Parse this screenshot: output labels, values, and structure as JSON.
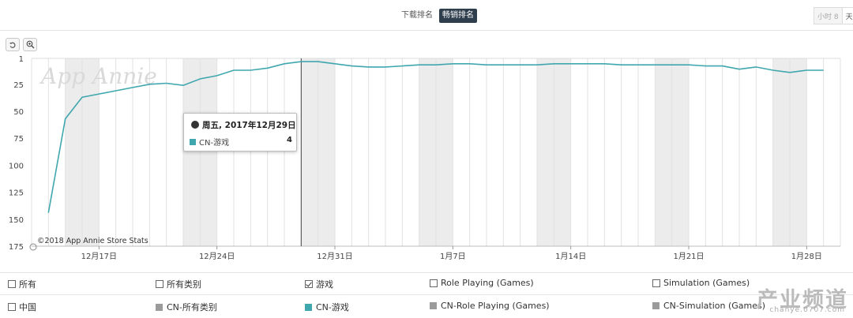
{
  "tabs": {
    "downloads": "下载排名",
    "grossing": "畅销排名"
  },
  "granularity": {
    "option1": "小时",
    "option1_suffix": "8",
    "option2": "天"
  },
  "toolbar": {
    "reset_icon": "undo-icon",
    "zoom_icon": "zoom-in-icon"
  },
  "watermark": "App Annie",
  "copyright": "©2018 App Annie Store Stats",
  "tooltip": {
    "date": "周五, 2017年12月29日",
    "series": "CN-游戏",
    "value": "4"
  },
  "chart_data": {
    "type": "line",
    "y_reversed": true,
    "ylim": [
      1,
      175
    ],
    "y_ticks": [
      "1",
      "25",
      "50",
      "75",
      "100",
      "125",
      "150",
      "175"
    ],
    "x_tick_labels": [
      {
        "date": "2017-12-17",
        "label": "12月17日"
      },
      {
        "date": "2017-12-24",
        "label": "12月24日"
      },
      {
        "date": "2017-12-31",
        "label": "12月31日"
      },
      {
        "date": "2018-01-07",
        "label": "1月7日"
      },
      {
        "date": "2018-01-14",
        "label": "1月14日"
      },
      {
        "date": "2018-01-21",
        "label": "1月21日"
      },
      {
        "date": "2018-01-28",
        "label": "1月28日"
      }
    ],
    "x_start": "2017-12-13",
    "x_end": "2018-01-30",
    "weekend_shading": [
      [
        "2017-12-15",
        "2017-12-17"
      ],
      [
        "2017-12-22",
        "2017-12-24"
      ],
      [
        "2017-12-29",
        "2017-12-31"
      ],
      [
        "2018-01-05",
        "2018-01-07"
      ],
      [
        "2018-01-12",
        "2018-01-14"
      ],
      [
        "2018-01-19",
        "2018-01-21"
      ],
      [
        "2018-01-26",
        "2018-01-28"
      ]
    ],
    "grid": true,
    "crosshair_date": "2017-12-29",
    "series": [
      {
        "name": "CN-游戏",
        "color": "#3fa7ad",
        "points": [
          [
            "2017-12-14",
            144
          ],
          [
            "2017-12-15",
            57
          ],
          [
            "2017-12-16",
            37
          ],
          [
            "2017-12-17",
            34
          ],
          [
            "2017-12-18",
            31
          ],
          [
            "2017-12-19",
            28
          ],
          [
            "2017-12-20",
            25
          ],
          [
            "2017-12-21",
            24
          ],
          [
            "2017-12-22",
            26
          ],
          [
            "2017-12-23",
            20
          ],
          [
            "2017-12-24",
            17
          ],
          [
            "2017-12-25",
            12
          ],
          [
            "2017-12-26",
            12
          ],
          [
            "2017-12-27",
            10
          ],
          [
            "2017-12-28",
            6
          ],
          [
            "2017-12-29",
            4
          ],
          [
            "2017-12-30",
            4
          ],
          [
            "2017-12-31",
            6
          ],
          [
            "2018-01-01",
            8
          ],
          [
            "2018-01-02",
            9
          ],
          [
            "2018-01-03",
            9
          ],
          [
            "2018-01-04",
            8
          ],
          [
            "2018-01-05",
            7
          ],
          [
            "2018-01-06",
            7
          ],
          [
            "2018-01-07",
            6
          ],
          [
            "2018-01-08",
            6
          ],
          [
            "2018-01-09",
            7
          ],
          [
            "2018-01-10",
            7
          ],
          [
            "2018-01-11",
            7
          ],
          [
            "2018-01-12",
            7
          ],
          [
            "2018-01-13",
            6
          ],
          [
            "2018-01-14",
            6
          ],
          [
            "2018-01-15",
            6
          ],
          [
            "2018-01-16",
            6
          ],
          [
            "2018-01-17",
            7
          ],
          [
            "2018-01-18",
            7
          ],
          [
            "2018-01-19",
            7
          ],
          [
            "2018-01-20",
            7
          ],
          [
            "2018-01-21",
            7
          ],
          [
            "2018-01-22",
            8
          ],
          [
            "2018-01-23",
            8
          ],
          [
            "2018-01-24",
            11
          ],
          [
            "2018-01-25",
            9
          ],
          [
            "2018-01-26",
            12
          ],
          [
            "2018-01-27",
            14
          ],
          [
            "2018-01-28",
            12
          ],
          [
            "2018-01-29",
            12
          ]
        ]
      }
    ]
  },
  "legend": {
    "row1": [
      {
        "label": "所有",
        "checked": false
      },
      {
        "label": "所有类别",
        "checked": false
      },
      {
        "label": "游戏",
        "checked": true
      },
      {
        "label": "Role Playing (Games)",
        "checked": false
      },
      {
        "label": "Simulation (Games)",
        "checked": false
      }
    ],
    "row2_country": "中国",
    "row2": [
      {
        "label": "CN-所有类别",
        "color": "#9b9b9b"
      },
      {
        "label": "CN-游戏",
        "color": "#3fa7ad"
      },
      {
        "label": "CN-Role Playing (Games)",
        "color": "#9b9b9b"
      },
      {
        "label": "CN-Simulation (Games)",
        "color": "#9b9b9b"
      }
    ]
  },
  "corner_mark": {
    "main": "产业频道",
    "sub": "chanye.0707.com"
  }
}
